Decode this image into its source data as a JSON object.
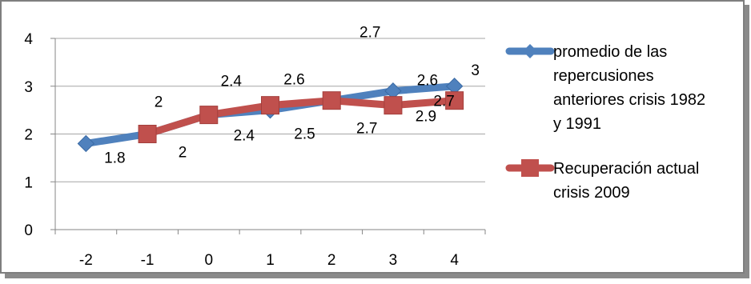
{
  "chart_data": {
    "type": "line",
    "x": [
      -2,
      -1,
      0,
      1,
      2,
      3,
      4
    ],
    "xlim": [
      -2.5,
      4.5
    ],
    "ylim": [
      0,
      4
    ],
    "y_ticks": [
      0,
      1,
      2,
      3,
      4
    ],
    "grid": "horizontal",
    "legend_position": "right",
    "series": [
      {
        "name": "promedio de las repercusiones anteriores crisis 1982 y 1991",
        "legend_lines": [
          "promedio de las",
          "repercusiones",
          "anteriores crisis 1982",
          "y 1991"
        ],
        "color": "#4F81BD",
        "marker": "diamond",
        "values": [
          1.8,
          2,
          2.4,
          2.5,
          2.7,
          2.9,
          3
        ],
        "labels": [
          "1.8",
          "2",
          "2.4",
          "2.5",
          "2.7",
          "2.9",
          "3"
        ]
      },
      {
        "name": "Recuperación actual crisis 2009",
        "legend_lines": [
          "Recuperación actual",
          "crisis 2009"
        ],
        "color": "#C0504D",
        "marker": "square",
        "values": [
          null,
          2,
          2.4,
          2.6,
          2.7,
          2.6,
          2.7
        ],
        "labels": [
          "",
          "2",
          "2.4",
          "2.6",
          "2.7",
          "2.6",
          "2.7"
        ]
      }
    ]
  }
}
